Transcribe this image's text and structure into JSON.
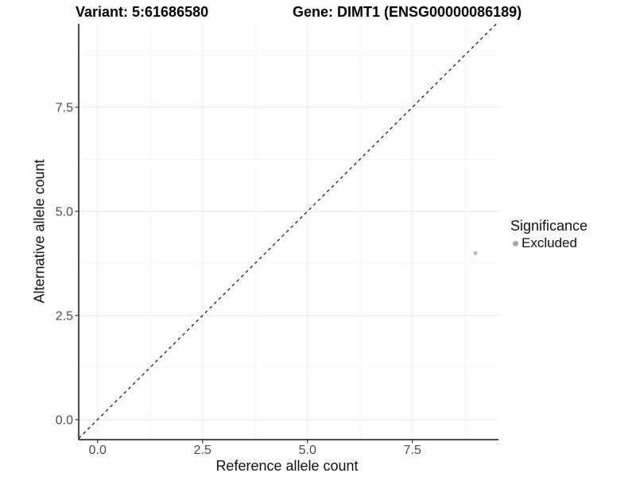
{
  "titles": {
    "left": "Variant: 5:61686580",
    "right": "Gene: DIMT1 (ENSG00000086189)"
  },
  "legend": {
    "title": "Significance",
    "items": [
      {
        "label": "Excluded",
        "color": "#a9a9a9"
      }
    ]
  },
  "colors": {
    "background": "#ffffff",
    "axis_line": "#111111",
    "tick_mark": "#333333",
    "tick_label": "#4d4d4d",
    "grid_major": "#ececec",
    "grid_minor": "#f5f5f5",
    "point": "#bdbdbd",
    "reference_line": "#111111"
  },
  "chart_data": {
    "type": "scatter",
    "title_left": "Variant: 5:61686580",
    "title_right": "Gene: DIMT1 (ENSG00000086189)",
    "xlabel": "Reference allele count",
    "ylabel": "Alternative allele count",
    "xlim": [
      -0.45,
      9.55
    ],
    "ylim": [
      -0.48,
      9.5
    ],
    "x_ticks": [
      0,
      2.5,
      5,
      7.5
    ],
    "x_tick_labels": [
      "0.0",
      "2.5",
      "5.0",
      "7.5"
    ],
    "y_ticks": [
      0,
      2.5,
      5,
      7.5
    ],
    "y_tick_labels": [
      "0.0",
      "2.5",
      "5.0",
      "7.5"
    ],
    "x_minor_ticks": [
      1.25,
      3.75,
      6.25,
      8.75
    ],
    "y_minor_ticks": [
      1.25,
      3.75,
      6.25,
      8.75
    ],
    "grid": true,
    "legend_position": "right",
    "series": [
      {
        "name": "Excluded",
        "color": "#bdbdbd",
        "point_radius": 2.6,
        "points": [
          {
            "x": 9,
            "y": 4
          }
        ]
      }
    ],
    "reference_line": {
      "equation": "y = x",
      "style": "dashed",
      "color": "#111111"
    }
  }
}
